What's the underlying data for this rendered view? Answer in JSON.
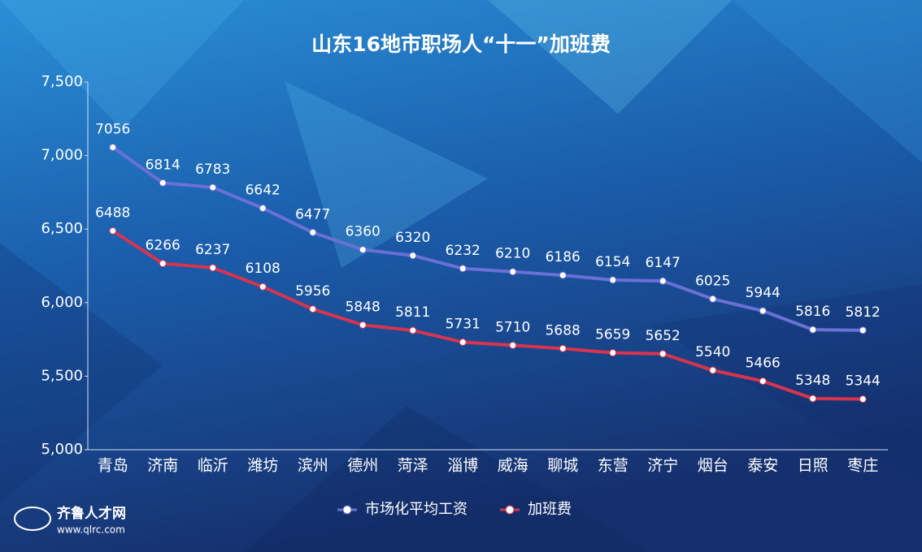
{
  "chart_data": {
    "type": "line",
    "title": "山东16地市职场人“十一”加班费",
    "categories": [
      "青岛",
      "济南",
      "临沂",
      "潍坊",
      "滨州",
      "德州",
      "菏泽",
      "淄博",
      "威海",
      "聊城",
      "东营",
      "济宁",
      "烟台",
      "泰安",
      "日照",
      "枣庄"
    ],
    "series": [
      {
        "name": "市场化平均工资",
        "color": "#6b70d6",
        "values": [
          7056,
          6814,
          6783,
          6642,
          6477,
          6360,
          6320,
          6232,
          6210,
          6186,
          6154,
          6147,
          6025,
          5944,
          5816,
          5812
        ]
      },
      {
        "name": "加班费",
        "color": "#d9344e",
        "values": [
          6488,
          6266,
          6237,
          6108,
          5956,
          5848,
          5811,
          5731,
          5710,
          5688,
          5659,
          5652,
          5540,
          5466,
          5348,
          5344
        ]
      }
    ],
    "ylim": [
      5000,
      7500
    ],
    "yticks": [
      {
        "value": 5000,
        "label": "5,000"
      },
      {
        "value": 5500,
        "label": "5,500"
      },
      {
        "value": 6000,
        "label": "6,000"
      },
      {
        "value": 6500,
        "label": "6,500"
      },
      {
        "value": 7000,
        "label": "7,000"
      },
      {
        "value": 7500,
        "label": "7,500"
      }
    ],
    "legend": "bottom"
  },
  "logo": {
    "name": "齐鲁人才网",
    "url": "www.qlrc.com"
  }
}
